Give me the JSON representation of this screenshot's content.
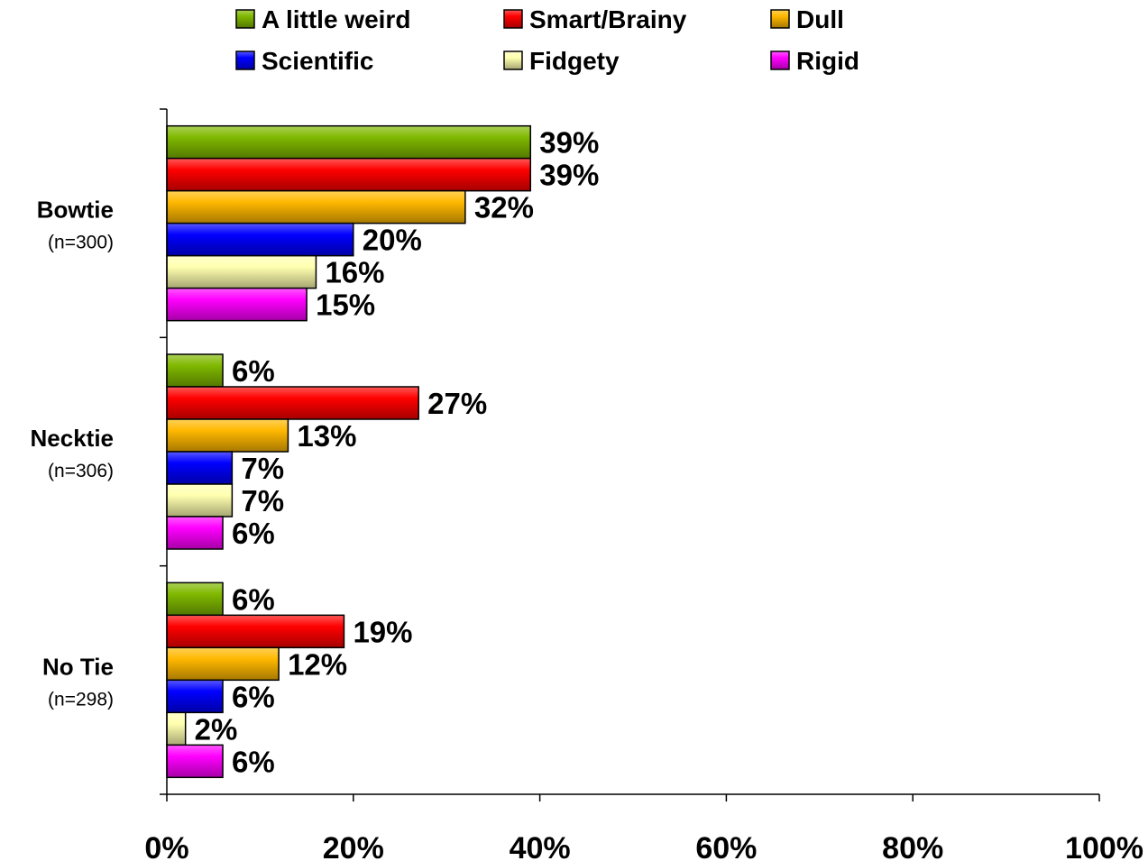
{
  "chart_data": {
    "type": "bar",
    "orientation": "horizontal",
    "categories": [
      {
        "label": "Bowtie",
        "n": "(n=300)"
      },
      {
        "label": "Necktie",
        "n": "(n=306)"
      },
      {
        "label": "No Tie",
        "n": "(n=298)"
      }
    ],
    "series": [
      {
        "name": "A little weird",
        "color": "#7fb800",
        "values": [
          39,
          6,
          6
        ],
        "labels": [
          "39%",
          "6%",
          "6%"
        ]
      },
      {
        "name": "Smart/Brainy",
        "color": "#ff0000",
        "values": [
          39,
          27,
          19
        ],
        "labels": [
          "39%",
          "27%",
          "19%"
        ]
      },
      {
        "name": "Dull",
        "color": "#ffb800",
        "values": [
          32,
          13,
          12
        ],
        "labels": [
          "32%",
          "13%",
          "12%"
        ]
      },
      {
        "name": "Scientific",
        "color": "#0000ff",
        "values": [
          20,
          7,
          6
        ],
        "labels": [
          "20%",
          "7%",
          "6%"
        ]
      },
      {
        "name": "Fidgety",
        "color": "#ffffb0",
        "values": [
          16,
          7,
          2
        ],
        "labels": [
          "16%",
          "7%",
          "2%"
        ]
      },
      {
        "name": "Rigid",
        "color": "#ff00ff",
        "values": [
          15,
          6,
          6
        ],
        "labels": [
          "15%",
          "6%",
          "6%"
        ]
      }
    ],
    "xlim": [
      0,
      100
    ],
    "xticks": [
      "0%",
      "20%",
      "40%",
      "60%",
      "80%",
      "100%"
    ],
    "grid": false,
    "legend_position": "top"
  }
}
